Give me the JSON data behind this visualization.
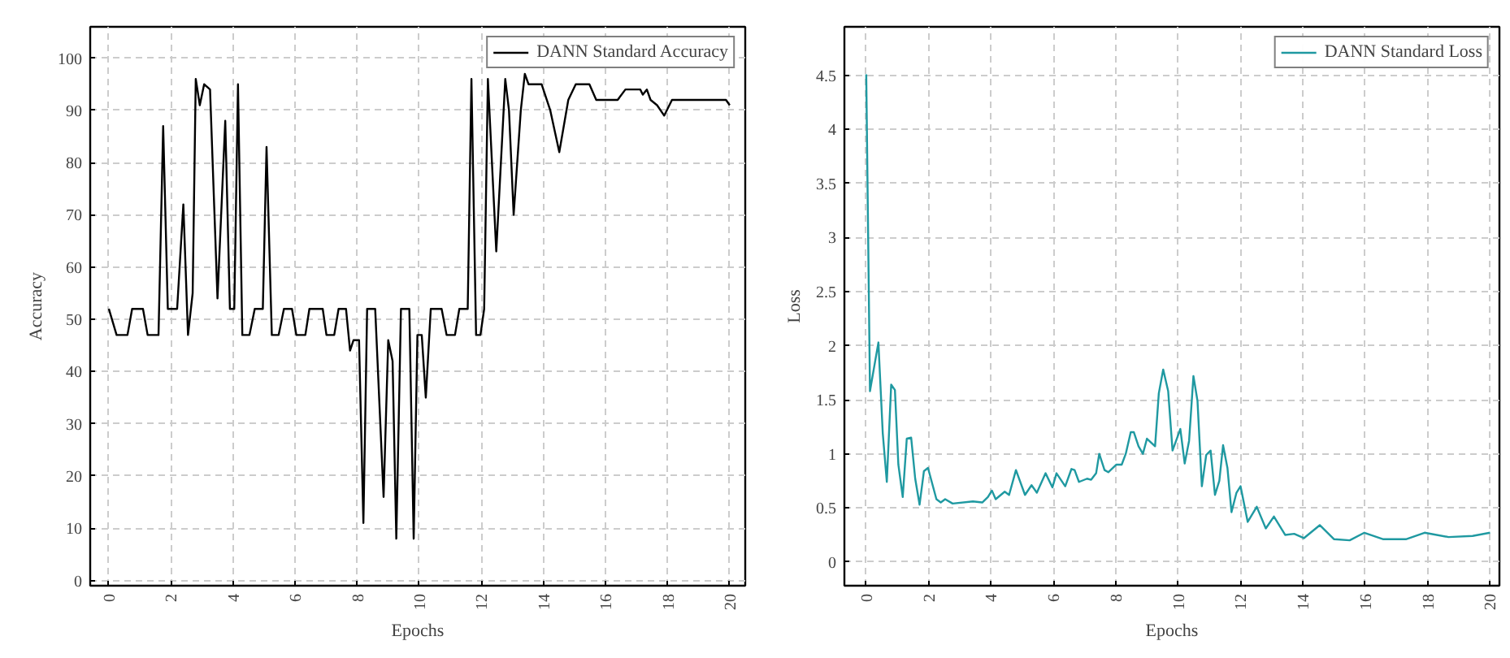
{
  "chart_data": [
    {
      "type": "line",
      "xlabel": "Epochs",
      "ylabel": "Accuracy",
      "xlim": [
        -0.6,
        20.5
      ],
      "ylim": [
        -1,
        106
      ],
      "xticks": [
        0,
        2,
        4,
        6,
        8,
        10,
        12,
        14,
        16,
        18,
        20
      ],
      "yticks": [
        0,
        10,
        20,
        30,
        40,
        50,
        60,
        70,
        80,
        90,
        100
      ],
      "grid": true,
      "legend": "top right",
      "series": [
        {
          "name": "DANN Standard Accuracy",
          "color": "#000000",
          "x": [
            0,
            0.25,
            0.6,
            0.75,
            1.1,
            1.25,
            1.6,
            1.75,
            1.9,
            2.2,
            2.4,
            2.55,
            2.7,
            2.8,
            2.93,
            3.07,
            3.26,
            3.5,
            3.75,
            3.9,
            4.04,
            4.16,
            4.3,
            4.53,
            4.7,
            4.96,
            5.08,
            5.25,
            5.47,
            5.64,
            5.9,
            6.04,
            6.33,
            6.46,
            6.89,
            7.01,
            7.26,
            7.4,
            7.64,
            7.77,
            7.88,
            8.06,
            8.2,
            8.32,
            8.58,
            8.85,
            9.0,
            9.14,
            9.26,
            9.41,
            9.68,
            9.82,
            9.94,
            10.08,
            10.21,
            10.37,
            10.72,
            10.88,
            11.15,
            11.29,
            11.56,
            11.68,
            11.83,
            11.97,
            12.09,
            12.21,
            12.48,
            12.77,
            12.89,
            13.04,
            13.27,
            13.4,
            13.52,
            13.94,
            14.22,
            14.51,
            14.8,
            15.04,
            15.48,
            15.7,
            16.39,
            16.64,
            17.12,
            17.2,
            17.33,
            17.45,
            17.66,
            17.89,
            18.14,
            19.88,
            20
          ],
          "values": [
            52,
            47,
            47,
            52,
            52,
            47,
            47,
            87,
            52,
            52,
            72,
            47,
            55,
            96,
            91,
            95,
            94,
            54,
            88,
            52,
            52,
            95,
            47,
            47,
            52,
            52,
            83,
            47,
            47,
            52,
            52,
            47,
            47,
            52,
            52,
            47,
            47,
            52,
            52,
            44,
            46,
            46,
            11,
            52,
            52,
            16,
            46,
            42,
            8,
            52,
            52,
            8,
            47,
            47,
            35,
            52,
            52,
            47,
            47,
            52,
            52,
            96,
            47,
            47,
            52,
            96,
            63,
            96,
            90,
            70,
            90,
            97,
            95,
            95,
            90,
            82,
            92,
            95,
            95,
            92,
            92,
            94,
            94,
            93,
            94,
            92,
            91,
            89,
            92,
            92,
            91
          ]
        }
      ]
    },
    {
      "type": "line",
      "xlabel": "Epochs",
      "ylabel": "Loss",
      "xlim": [
        -0.7,
        20.3
      ],
      "ylim": [
        -0.22,
        4.95
      ],
      "xticks": [
        0,
        2,
        4,
        6,
        8,
        10,
        12,
        14,
        16,
        18,
        20
      ],
      "yticks": [
        0,
        0.5,
        1,
        1.5,
        2,
        2.5,
        3,
        3.5,
        4,
        4.5
      ],
      "grid": true,
      "legend": "top right",
      "series": [
        {
          "name": "DANN Standard Loss",
          "color": "#1f99a1",
          "x": [
            0,
            0.12,
            0.39,
            0.53,
            0.66,
            0.8,
            0.92,
            1.03,
            1.17,
            1.3,
            1.44,
            1.57,
            1.71,
            1.85,
            1.98,
            2.25,
            2.39,
            2.53,
            2.77,
            3.42,
            3.72,
            3.9,
            4.03,
            4.15,
            4.44,
            4.58,
            4.8,
            5.09,
            5.3,
            5.47,
            5.75,
            5.97,
            6.1,
            6.38,
            6.58,
            6.68,
            6.82,
            7.08,
            7.21,
            7.37,
            7.47,
            7.64,
            7.76,
            8.02,
            8.19,
            8.32,
            8.48,
            8.58,
            8.73,
            8.87,
            9.0,
            9.26,
            9.38,
            9.52,
            9.68,
            9.82,
            10.07,
            10.21,
            10.35,
            10.49,
            10.62,
            10.76,
            10.9,
            11.04,
            11.18,
            11.32,
            11.44,
            11.58,
            11.71,
            11.87,
            12.0,
            12.23,
            12.52,
            12.81,
            13.07,
            13.43,
            13.72,
            14.03,
            14.54,
            15.0,
            15.5,
            15.97,
            16.58,
            17.3,
            17.9,
            18.67,
            19.44,
            20
          ],
          "values": [
            4.51,
            1.58,
            2.03,
            1.19,
            0.74,
            1.64,
            1.59,
            0.9,
            0.6,
            1.14,
            1.15,
            0.77,
            0.53,
            0.84,
            0.87,
            0.58,
            0.55,
            0.58,
            0.54,
            0.56,
            0.55,
            0.6,
            0.66,
            0.58,
            0.65,
            0.62,
            0.85,
            0.62,
            0.71,
            0.64,
            0.82,
            0.69,
            0.82,
            0.7,
            0.86,
            0.85,
            0.74,
            0.77,
            0.76,
            0.82,
            1.0,
            0.85,
            0.83,
            0.9,
            0.9,
            1.0,
            1.2,
            1.2,
            1.07,
            1.0,
            1.14,
            1.07,
            1.56,
            1.78,
            1.58,
            1.03,
            1.23,
            0.91,
            1.12,
            1.72,
            1.49,
            0.7,
            0.99,
            1.03,
            0.62,
            0.75,
            1.08,
            0.87,
            0.46,
            0.64,
            0.7,
            0.37,
            0.51,
            0.31,
            0.42,
            0.25,
            0.26,
            0.22,
            0.34,
            0.21,
            0.2,
            0.27,
            0.21,
            0.21,
            0.27,
            0.23,
            0.24,
            0.27
          ]
        }
      ]
    }
  ]
}
